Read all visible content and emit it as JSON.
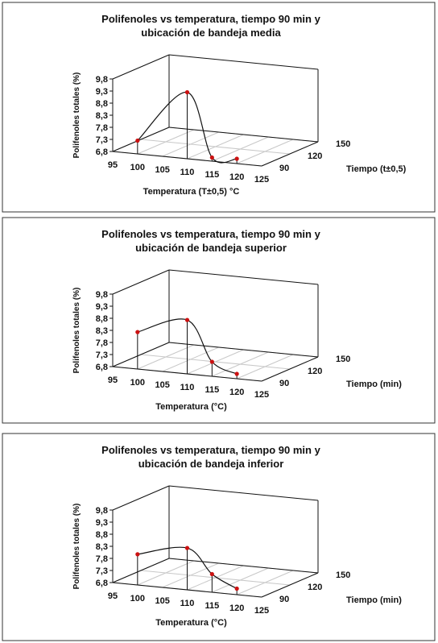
{
  "chart_data": [
    {
      "type": "line3d",
      "title": [
        "Polifenoles vs temperatura, tiempo 90 min y",
        "ubicación de bandeja media"
      ],
      "xlabel": "Temperatura (T±0,5)  °C",
      "ylabel": "Tiempo (t±0,5)",
      "zlabel": "Polifenoles totales (%)",
      "x": [
        100,
        110,
        115,
        120
      ],
      "values": [
        7.35,
        9.55,
        6.95,
        7.0
      ],
      "color": "#cc1111",
      "xlim": [
        95,
        125
      ],
      "xticks": [
        95,
        100,
        105,
        110,
        115,
        120,
        125
      ],
      "ylim": [
        90,
        150
      ],
      "yticks": [
        90,
        120,
        150
      ],
      "zlim": [
        6.8,
        9.8
      ],
      "zticks": [
        {
          "value": 6.8,
          "label": "6,8"
        },
        {
          "value": 7.3,
          "label": "7,3"
        },
        {
          "value": 7.8,
          "label": "7,8"
        },
        {
          "value": 8.3,
          "label": "8,3"
        },
        {
          "value": 8.8,
          "label": "8,8"
        },
        {
          "value": 9.3,
          "label": "9,3"
        },
        {
          "value": 9.8,
          "label": "9,8"
        }
      ],
      "grid": true
    },
    {
      "type": "line3d",
      "title": [
        "Polifenoles vs temperatura, tiempo 90 min y",
        "ubicación de bandeja superior"
      ],
      "xlabel": "Temperatura (°C)",
      "ylabel": "Tiempo (min)",
      "zlabel": "Polifenoles totales (%)",
      "x": [
        100,
        110,
        115,
        120
      ],
      "values": [
        8.33,
        9.03,
        7.4,
        7.0
      ],
      "color": "#cc1111",
      "xlim": [
        95,
        125
      ],
      "xticks": [
        95,
        100,
        105,
        110,
        115,
        120,
        125
      ],
      "ylim": [
        90,
        150
      ],
      "yticks": [
        90,
        120,
        150
      ],
      "zlim": [
        6.8,
        9.8
      ],
      "zticks": [
        {
          "value": 6.8,
          "label": "6,8"
        },
        {
          "value": 7.3,
          "label": "7,3"
        },
        {
          "value": 7.8,
          "label": "7,8"
        },
        {
          "value": 8.3,
          "label": "8,3"
        },
        {
          "value": 8.8,
          "label": "8,8"
        },
        {
          "value": 9.3,
          "label": "9,3"
        },
        {
          "value": 9.8,
          "label": "9,8"
        }
      ],
      "grid": true
    },
    {
      "type": "line3d",
      "title": [
        "Polifenoles vs temperatura, tiempo 90 min y",
        "ubicación de bandeja inferior"
      ],
      "xlabel": "Temperatura (°C)",
      "ylabel": "Tiempo (min)",
      "zlabel": "Polifenoles totales (%)",
      "x": [
        100,
        110,
        115,
        120
      ],
      "values": [
        8.07,
        8.53,
        7.55,
        7.05
      ],
      "color": "#cc1111",
      "xlim": [
        95,
        125
      ],
      "xticks": [
        95,
        100,
        105,
        110,
        115,
        120,
        125
      ],
      "ylim": [
        90,
        150
      ],
      "yticks": [
        90,
        120,
        150
      ],
      "zlim": [
        6.8,
        9.8
      ],
      "zticks": [
        {
          "value": 6.8,
          "label": "6,8"
        },
        {
          "value": 7.3,
          "label": "7,3"
        },
        {
          "value": 7.8,
          "label": "7,8"
        },
        {
          "value": 8.3,
          "label": "8,3"
        },
        {
          "value": 8.8,
          "label": "8,8"
        },
        {
          "value": 9.3,
          "label": "9,3"
        },
        {
          "value": 9.8,
          "label": "9,8"
        }
      ],
      "grid": true
    }
  ]
}
